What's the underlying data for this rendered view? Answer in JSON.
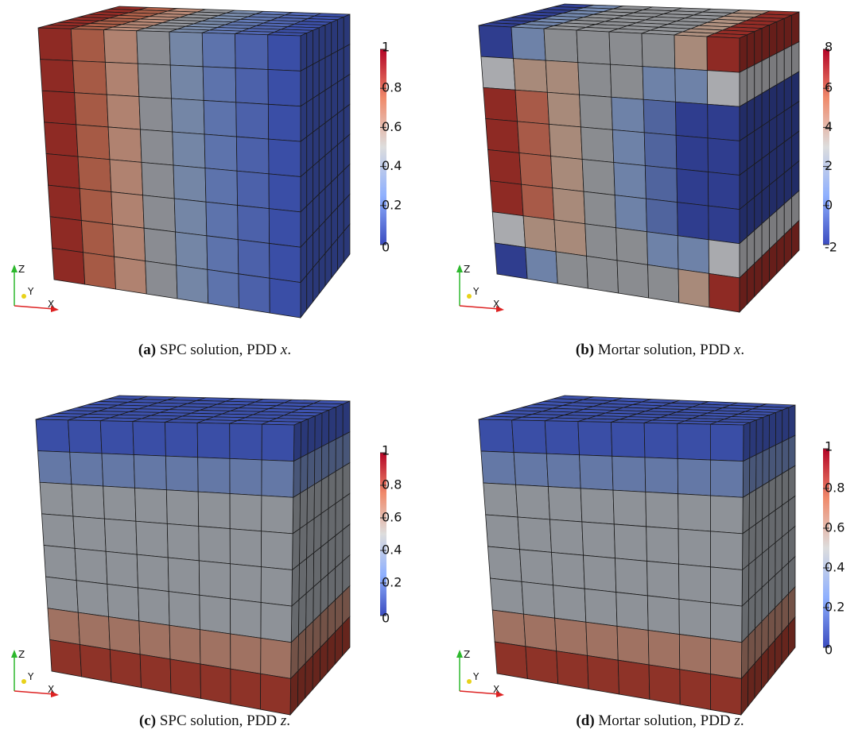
{
  "panels": [
    {
      "label": "(a)",
      "caption": "SPC solution, PDD",
      "variable": "x",
      "end": ".",
      "colorbar_ticks": [
        1,
        0.8,
        0.6,
        0.4,
        0.2,
        0
      ],
      "axes": {
        "z": "Z",
        "y": "Y",
        "x": "X"
      }
    },
    {
      "label": "(b)",
      "caption": "Mortar solution, PDD",
      "variable": "x",
      "end": ".",
      "colorbar_ticks": [
        8,
        6,
        4,
        2,
        0,
        -2
      ],
      "axes": {
        "z": "Z",
        "y": "Y",
        "x": "X"
      }
    },
    {
      "label": "(c)",
      "caption": "SPC solution, PDD",
      "variable": "z",
      "end": ".",
      "colorbar_ticks": [
        1,
        0.8,
        0.6,
        0.4,
        0.2,
        0
      ],
      "axes": {
        "z": "Z",
        "y": "Y",
        "x": "X"
      }
    },
    {
      "label": "(d)",
      "caption": "Mortar solution, PDD",
      "variable": "z",
      "end": ".",
      "colorbar_ticks": [
        1,
        0.8,
        0.6,
        0.4,
        0.2,
        0
      ],
      "axes": {
        "z": "Z",
        "y": "Y",
        "x": "X"
      }
    }
  ]
}
